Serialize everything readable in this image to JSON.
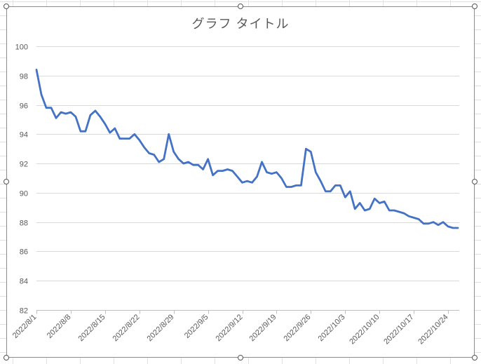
{
  "chart_data": {
    "type": "line",
    "title": "グラフ タイトル",
    "xlabel": "",
    "ylabel": "",
    "ylim": [
      82,
      100
    ],
    "yticks": [
      82,
      84,
      86,
      88,
      90,
      92,
      94,
      96,
      98,
      100
    ],
    "x_start": "2022/8/1",
    "x_end": "2022/10/26",
    "xtick_labels": [
      "2022/8/1",
      "2022/8/8",
      "2022/8/15",
      "2022/8/22",
      "2022/8/29",
      "2022/9/5",
      "2022/9/12",
      "2022/9/19",
      "2022/9/26",
      "2022/10/3",
      "2022/10/10",
      "2022/10/17",
      "2022/10/24"
    ],
    "grid": true,
    "legend": "none",
    "series": [
      {
        "color": "#4472c4",
        "x": [
          "2022/8/1",
          "2022/8/2",
          "2022/8/3",
          "2022/8/4",
          "2022/8/5",
          "2022/8/6",
          "2022/8/7",
          "2022/8/8",
          "2022/8/9",
          "2022/8/10",
          "2022/8/11",
          "2022/8/12",
          "2022/8/13",
          "2022/8/14",
          "2022/8/15",
          "2022/8/16",
          "2022/8/17",
          "2022/8/18",
          "2022/8/19",
          "2022/8/20",
          "2022/8/21",
          "2022/8/22",
          "2022/8/23",
          "2022/8/24",
          "2022/8/25",
          "2022/8/26",
          "2022/8/27",
          "2022/8/28",
          "2022/8/29",
          "2022/8/30",
          "2022/8/31",
          "2022/9/1",
          "2022/9/2",
          "2022/9/3",
          "2022/9/4",
          "2022/9/5",
          "2022/9/6",
          "2022/9/7",
          "2022/9/8",
          "2022/9/9",
          "2022/9/10",
          "2022/9/11",
          "2022/9/12",
          "2022/9/13",
          "2022/9/14",
          "2022/9/15",
          "2022/9/16",
          "2022/9/17",
          "2022/9/18",
          "2022/9/19",
          "2022/9/20",
          "2022/9/21",
          "2022/9/22",
          "2022/9/23",
          "2022/9/24",
          "2022/9/25",
          "2022/9/26",
          "2022/9/27",
          "2022/9/28",
          "2022/9/29",
          "2022/9/30",
          "2022/10/1",
          "2022/10/2",
          "2022/10/3",
          "2022/10/4",
          "2022/10/5",
          "2022/10/6",
          "2022/10/7",
          "2022/10/8",
          "2022/10/9",
          "2022/10/10",
          "2022/10/11",
          "2022/10/12",
          "2022/10/13",
          "2022/10/14",
          "2022/10/15",
          "2022/10/16",
          "2022/10/17",
          "2022/10/18",
          "2022/10/19",
          "2022/10/20",
          "2022/10/21",
          "2022/10/22",
          "2022/10/23",
          "2022/10/24",
          "2022/10/25",
          "2022/10/26"
        ],
        "values": [
          98.4,
          96.7,
          95.8,
          95.8,
          95.1,
          95.5,
          95.4,
          95.5,
          95.2,
          94.2,
          94.2,
          95.3,
          95.6,
          95.2,
          94.7,
          94.1,
          94.4,
          93.7,
          93.7,
          93.7,
          94.0,
          93.6,
          93.1,
          92.7,
          92.6,
          92.1,
          92.3,
          94.0,
          92.8,
          92.3,
          92.0,
          92.1,
          91.9,
          91.9,
          91.6,
          92.3,
          91.2,
          91.5,
          91.5,
          91.6,
          91.5,
          91.1,
          90.7,
          90.8,
          90.7,
          91.1,
          92.1,
          91.4,
          91.3,
          91.4,
          91.0,
          90.4,
          90.4,
          90.5,
          90.5,
          93.0,
          92.8,
          91.4,
          90.8,
          90.1,
          90.1,
          90.5,
          90.5,
          89.7,
          90.1,
          88.9,
          89.3,
          88.8,
          88.9,
          89.6,
          89.3,
          89.4,
          88.8,
          88.8,
          88.7,
          88.6,
          88.4,
          88.3,
          88.2,
          87.9,
          87.9,
          88.0,
          87.8,
          88.0,
          87.7,
          87.6,
          87.6
        ]
      }
    ]
  },
  "colors": {
    "line": "#4472c4",
    "gridline": "#d9d9d9",
    "axis": "#bfbfbf",
    "tick_text": "#595959",
    "frame": "#8c8c8c"
  }
}
